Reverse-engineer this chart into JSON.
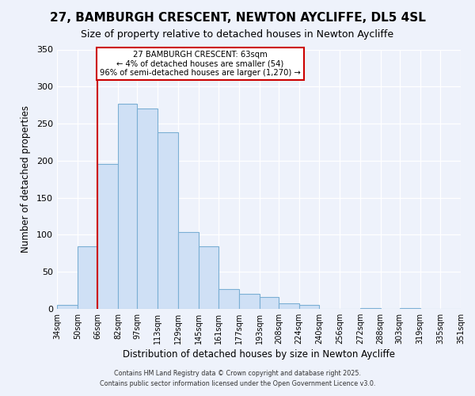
{
  "title": "27, BAMBURGH CRESCENT, NEWTON AYCLIFFE, DL5 4SL",
  "subtitle": "Size of property relative to detached houses in Newton Aycliffe",
  "xlabel": "Distribution of detached houses by size in Newton Aycliffe",
  "ylabel": "Number of detached properties",
  "bar_values": [
    5,
    84,
    196,
    277,
    270,
    238,
    104,
    84,
    27,
    20,
    16,
    7,
    5,
    0,
    0,
    1,
    0,
    1,
    0,
    0
  ],
  "bar_labels": [
    "34sqm",
    "50sqm",
    "66sqm",
    "82sqm",
    "97sqm",
    "113sqm",
    "129sqm",
    "145sqm",
    "161sqm",
    "177sqm",
    "193sqm",
    "208sqm",
    "224sqm",
    "240sqm",
    "256sqm",
    "272sqm",
    "288sqm",
    "303sqm",
    "319sqm",
    "335sqm",
    "351sqm"
  ],
  "bar_color": "#cfe0f5",
  "bar_edge_color": "#7bafd4",
  "property_line_color": "#cc0000",
  "property_line_x": 66,
  "annotation_title": "27 BAMBURGH CRESCENT: 63sqm",
  "annotation_line1": "← 4% of detached houses are smaller (54)",
  "annotation_line2": "96% of semi-detached houses are larger (1,270) →",
  "annotation_box_edgecolor": "#cc0000",
  "annotation_box_facecolor": "#ffffff",
  "ylim_max": 350,
  "yticks": [
    0,
    50,
    100,
    150,
    200,
    250,
    300,
    350
  ],
  "footer1": "Contains HM Land Registry data © Crown copyright and database right 2025.",
  "footer2": "Contains public sector information licensed under the Open Government Licence v3.0.",
  "bin_edges": [
    34,
    50,
    66,
    82,
    97,
    113,
    129,
    145,
    161,
    177,
    193,
    208,
    224,
    240,
    256,
    272,
    288,
    303,
    319,
    335,
    351
  ],
  "background_color": "#eef2fb",
  "grid_color": "#ffffff",
  "title_fontsize": 11,
  "subtitle_fontsize": 9
}
